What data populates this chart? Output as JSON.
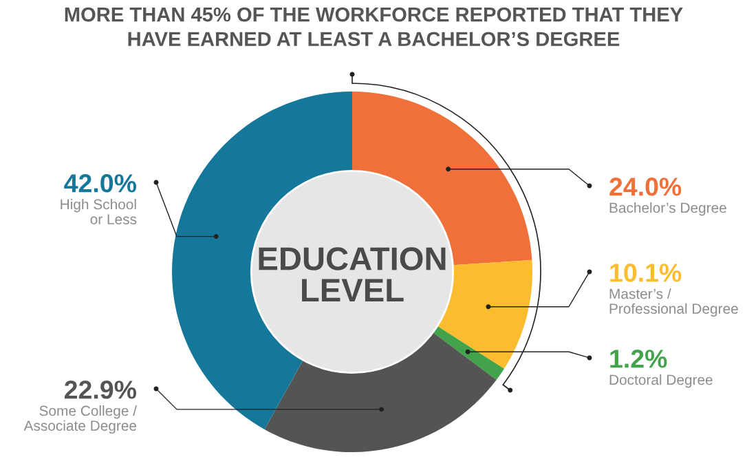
{
  "chart_data": {
    "type": "donut",
    "title": "MORE THAN 45% OF THE WORKFORCE REPORTED THAT THEY\nHAVE EARNED AT LEAST A BACHELOR’S DEGREE",
    "categories": [
      "Bachelor’s Degree",
      "Master’s /\nProfessional Degree",
      "Doctoral Degree",
      "Some College /\nAssociate Degree",
      "High School\nor Less"
    ],
    "values": [
      24.0,
      10.1,
      1.2,
      22.9,
      42.0
    ],
    "colors": [
      "#f0703a",
      "#fbbd2f",
      "#43a34a",
      "#535554",
      "#15779a"
    ],
    "value_labels": [
      "24.0%",
      "10.1%",
      "1.2%",
      "22.9%",
      "42.0%"
    ],
    "annotations": [
      "EDUCATION\nLEVEL"
    ]
  }
}
